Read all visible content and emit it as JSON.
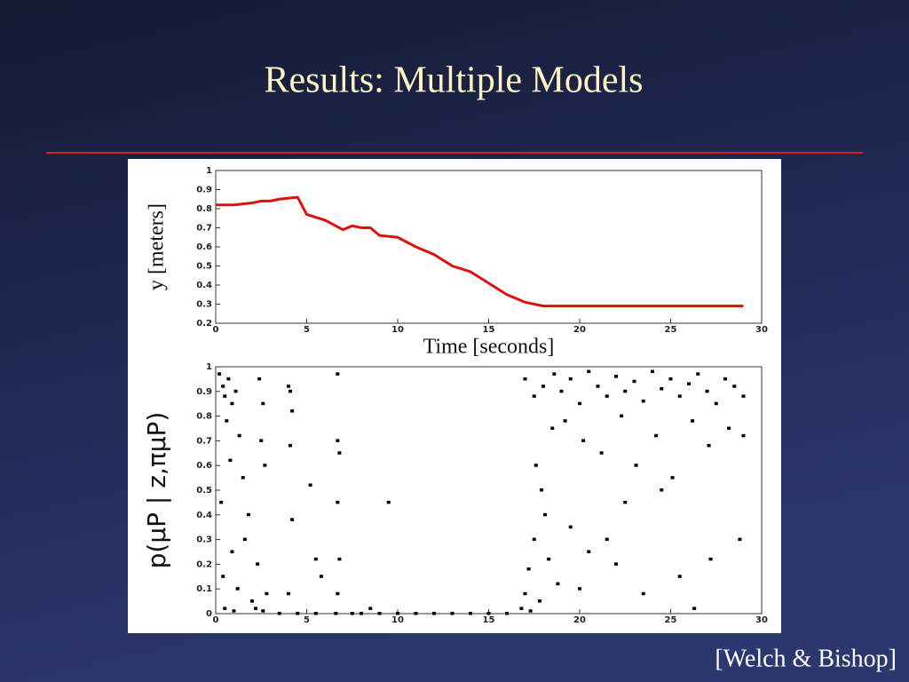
{
  "title": "Results: Multiple Models",
  "citation": "[Welch & Bishop]",
  "chart_data": [
    {
      "type": "line",
      "xlabel": "Time [seconds]",
      "ylabel": "y [meters]",
      "x": [
        0,
        1,
        2,
        2.5,
        3,
        3.5,
        4.5,
        5,
        6,
        7,
        7.5,
        8,
        8.5,
        9,
        10,
        11,
        12,
        13,
        14,
        15,
        16,
        17,
        18,
        20,
        25,
        29
      ],
      "series": [
        {
          "name": "y",
          "color": "#e01010",
          "values": [
            0.82,
            0.82,
            0.83,
            0.84,
            0.84,
            0.85,
            0.86,
            0.77,
            0.74,
            0.69,
            0.71,
            0.7,
            0.7,
            0.66,
            0.65,
            0.6,
            0.56,
            0.5,
            0.47,
            0.41,
            0.35,
            0.31,
            0.29,
            0.29,
            0.29,
            0.29
          ]
        }
      ],
      "xlim": [
        0,
        30
      ],
      "xticks": [
        0,
        5,
        10,
        15,
        20,
        25,
        30
      ],
      "ylim": [
        0.2,
        1
      ],
      "yticks": [
        0.2,
        0.3,
        0.4,
        0.5,
        0.6,
        0.7,
        0.8,
        0.9,
        1
      ]
    },
    {
      "type": "scatter",
      "ylabel": "p(μP | z,πμP)",
      "color": "#000000",
      "x": [
        0.2,
        0.4,
        0.5,
        0.7,
        0.9,
        1.1,
        0.6,
        1.3,
        0.8,
        1.5,
        0.3,
        1.8,
        0.9,
        1.6,
        0.4,
        1.2,
        2.0,
        0.5,
        1.0,
        2.2,
        2.4,
        2.6,
        2.5,
        2.7,
        2.3,
        2.8,
        2.6,
        4.0,
        4.1,
        4.2,
        4.1,
        4.2,
        4.0,
        3.5,
        6.7,
        6.7,
        6.8,
        6.7,
        6.8,
        6.7,
        6.6,
        5.2,
        5.5,
        5.8,
        9.5,
        8.5,
        4.5,
        5.5,
        7.5,
        8,
        9,
        10,
        11,
        12,
        13,
        14,
        15,
        16,
        16.8,
        17,
        17.2,
        17.3,
        17.5,
        17.8,
        17.6,
        17.9,
        18.1,
        18.3,
        18.5,
        18.8,
        17,
        17.5,
        18,
        18.6,
        19,
        19.5,
        20,
        20.5,
        21,
        21.5,
        22,
        22.5,
        23,
        23.5,
        24,
        24.5,
        25,
        25.5,
        26,
        26.5,
        27,
        27.5,
        28,
        28.5,
        29,
        19.2,
        20.2,
        21.2,
        22.3,
        23.1,
        24.2,
        25.1,
        26.2,
        27.1,
        28.2,
        29,
        19.5,
        20.5,
        21.5,
        22.5,
        23.5,
        24.5,
        25.5,
        26.3,
        27.2,
        28.8,
        20,
        22
      ],
      "values": [
        0.97,
        0.92,
        0.88,
        0.95,
        0.85,
        0.9,
        0.78,
        0.72,
        0.62,
        0.55,
        0.45,
        0.4,
        0.25,
        0.3,
        0.15,
        0.1,
        0.05,
        0.02,
        0.01,
        0.02,
        0.95,
        0.85,
        0.7,
        0.6,
        0.2,
        0.08,
        0.01,
        0.92,
        0.9,
        0.82,
        0.68,
        0.38,
        0.08,
        0,
        0.97,
        0.7,
        0.65,
        0.45,
        0.22,
        0.08,
        0,
        0.52,
        0.22,
        0.15,
        0.45,
        0.02,
        0,
        0,
        0,
        0,
        0,
        0,
        0,
        0,
        0,
        0,
        0,
        0,
        0.02,
        0.08,
        0.18,
        0.01,
        0.3,
        0.05,
        0.6,
        0.5,
        0.4,
        0.22,
        0.75,
        0.12,
        0.95,
        0.88,
        0.92,
        0.97,
        0.9,
        0.95,
        0.85,
        0.98,
        0.92,
        0.88,
        0.96,
        0.9,
        0.94,
        0.86,
        0.98,
        0.91,
        0.95,
        0.88,
        0.93,
        0.97,
        0.9,
        0.85,
        0.95,
        0.92,
        0.88,
        0.78,
        0.7,
        0.65,
        0.8,
        0.6,
        0.72,
        0.55,
        0.78,
        0.68,
        0.75,
        0.72,
        0.35,
        0.25,
        0.3,
        0.45,
        0.08,
        0.5,
        0.15,
        0.02,
        0.22,
        0.3,
        0.1,
        0.2
      ],
      "xlim": [
        0,
        30
      ],
      "xticks": [
        0,
        5,
        10,
        15,
        20,
        25,
        30
      ],
      "ylim": [
        0,
        1
      ],
      "yticks": [
        0,
        0.1,
        0.2,
        0.3,
        0.4,
        0.5,
        0.6,
        0.7,
        0.8,
        0.9,
        1
      ]
    }
  ]
}
